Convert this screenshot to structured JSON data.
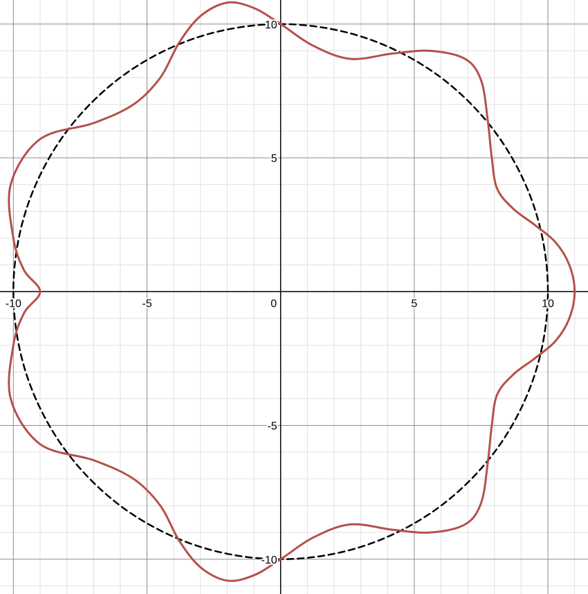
{
  "chart_data": {
    "type": "line",
    "title": "",
    "xlabel": "",
    "ylabel": "",
    "xlim": [
      -10.5,
      11.5
    ],
    "ylim": [
      -11.3,
      10.9
    ],
    "grid": true,
    "x_tick_labels": [
      {
        "value": -10,
        "label": "-10"
      },
      {
        "value": -5,
        "label": "-5"
      },
      {
        "value": 0,
        "label": "0"
      },
      {
        "value": 5,
        "label": "5"
      },
      {
        "value": 10,
        "label": "10"
      }
    ],
    "y_tick_labels": [
      {
        "value": 10,
        "label": "10"
      },
      {
        "value": 5,
        "label": "5"
      },
      {
        "value": -5,
        "label": "-5"
      },
      {
        "value": -10,
        "label": "-10"
      }
    ],
    "series": [
      {
        "style": "dashed",
        "color": "#000000",
        "x": [
          10.0,
          9.5106,
          8.0902,
          5.8779,
          3.0902,
          0.0,
          -3.0902,
          -5.8779,
          -8.0902,
          -9.5106,
          -10.0,
          -9.5106,
          -8.0902,
          -5.8779,
          -3.0902,
          0.0,
          3.0902,
          5.8779,
          8.0902,
          9.5106,
          10.0
        ],
        "y": [
          0.0,
          3.0902,
          5.8779,
          8.0902,
          9.5106,
          10.0,
          9.5106,
          8.0902,
          5.8779,
          3.0902,
          0.0,
          -3.0902,
          -5.8779,
          -8.0902,
          -9.5106,
          -10.0,
          -9.5106,
          -8.0902,
          -5.8779,
          -3.0902,
          0.0
        ]
      },
      {
        "style": "solid",
        "color": "#b5504b",
        "x": [
          11.0,
          10.8,
          10.28,
          9.5,
          8.7,
          8.1,
          7.9,
          7.75,
          7.5,
          6.9,
          5.6,
          4.2,
          2.6,
          1.2,
          0.0,
          -1.0,
          -2.0,
          -3.0,
          -3.8,
          -4.5,
          -5.5,
          -7.0,
          -9.0,
          -10.1,
          -10.0,
          -9.6,
          -9.0,
          -9.6,
          -10.0,
          -10.1,
          -9.0,
          -7.0,
          -5.5,
          -4.5,
          -3.8,
          -3.0,
          -2.0,
          -1.0,
          0.0,
          1.2,
          2.6,
          4.2,
          5.6,
          6.9,
          7.5,
          7.75,
          7.9,
          8.1,
          8.7,
          9.5,
          10.28,
          10.8,
          11.0
        ],
        "y": [
          0.0,
          1.0,
          1.85,
          2.5,
          3.1,
          3.85,
          5.0,
          6.4,
          7.9,
          8.7,
          9.0,
          8.9,
          8.7,
          9.2,
          10.0,
          10.6,
          10.8,
          10.3,
          9.3,
          8.0,
          7.0,
          6.3,
          5.7,
          4.0,
          2.0,
          0.8,
          0.0,
          -0.8,
          -2.0,
          -4.0,
          -5.7,
          -6.3,
          -7.0,
          -8.0,
          -9.3,
          -10.3,
          -10.8,
          -10.6,
          -10.0,
          -9.2,
          -8.7,
          -8.9,
          -9.0,
          -8.7,
          -7.9,
          -6.4,
          -5.0,
          -3.85,
          -3.1,
          -2.5,
          -1.85,
          -1.0,
          0.0
        ]
      }
    ]
  }
}
